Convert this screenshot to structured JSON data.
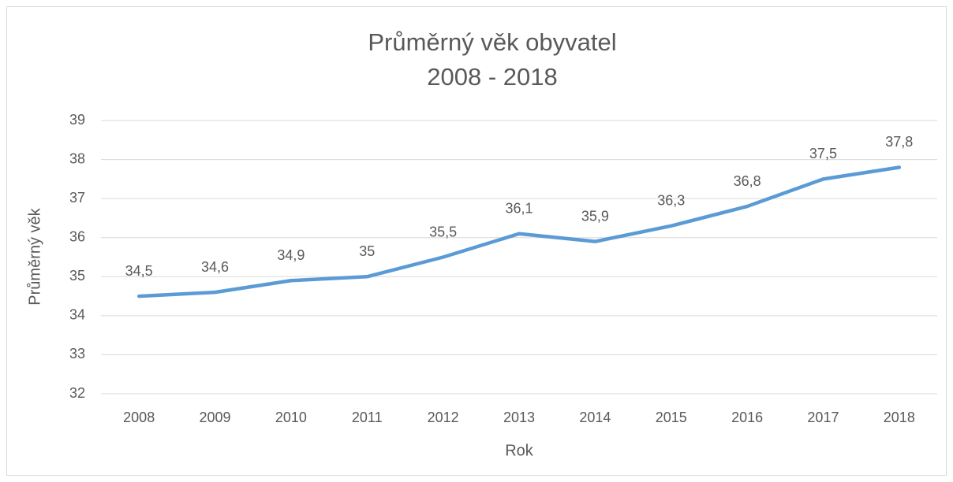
{
  "chart_data": {
    "type": "line",
    "title": "Průměrný věk obyvatel",
    "subtitle": "2008 - 2018",
    "x_label": "Rok",
    "y_label": "Průměrný věk",
    "categories": [
      "2008",
      "2009",
      "2010",
      "2011",
      "2012",
      "2013",
      "2014",
      "2015",
      "2016",
      "2017",
      "2018"
    ],
    "series": [
      {
        "name": "Průměrný věk",
        "color": "#5b9bd5",
        "values": [
          34.5,
          34.6,
          34.9,
          35,
          35.5,
          36.1,
          35.9,
          36.3,
          36.8,
          37.5,
          37.8
        ],
        "value_labels": [
          "34,5",
          "34,6",
          "34,9",
          "35",
          "35,5",
          "36,1",
          "35,9",
          "36,3",
          "36,8",
          "37,5",
          "37,8"
        ]
      }
    ],
    "ylim": [
      32,
      39
    ],
    "yticks": [
      32,
      33,
      34,
      35,
      36,
      37,
      38,
      39
    ],
    "grid": true
  }
}
